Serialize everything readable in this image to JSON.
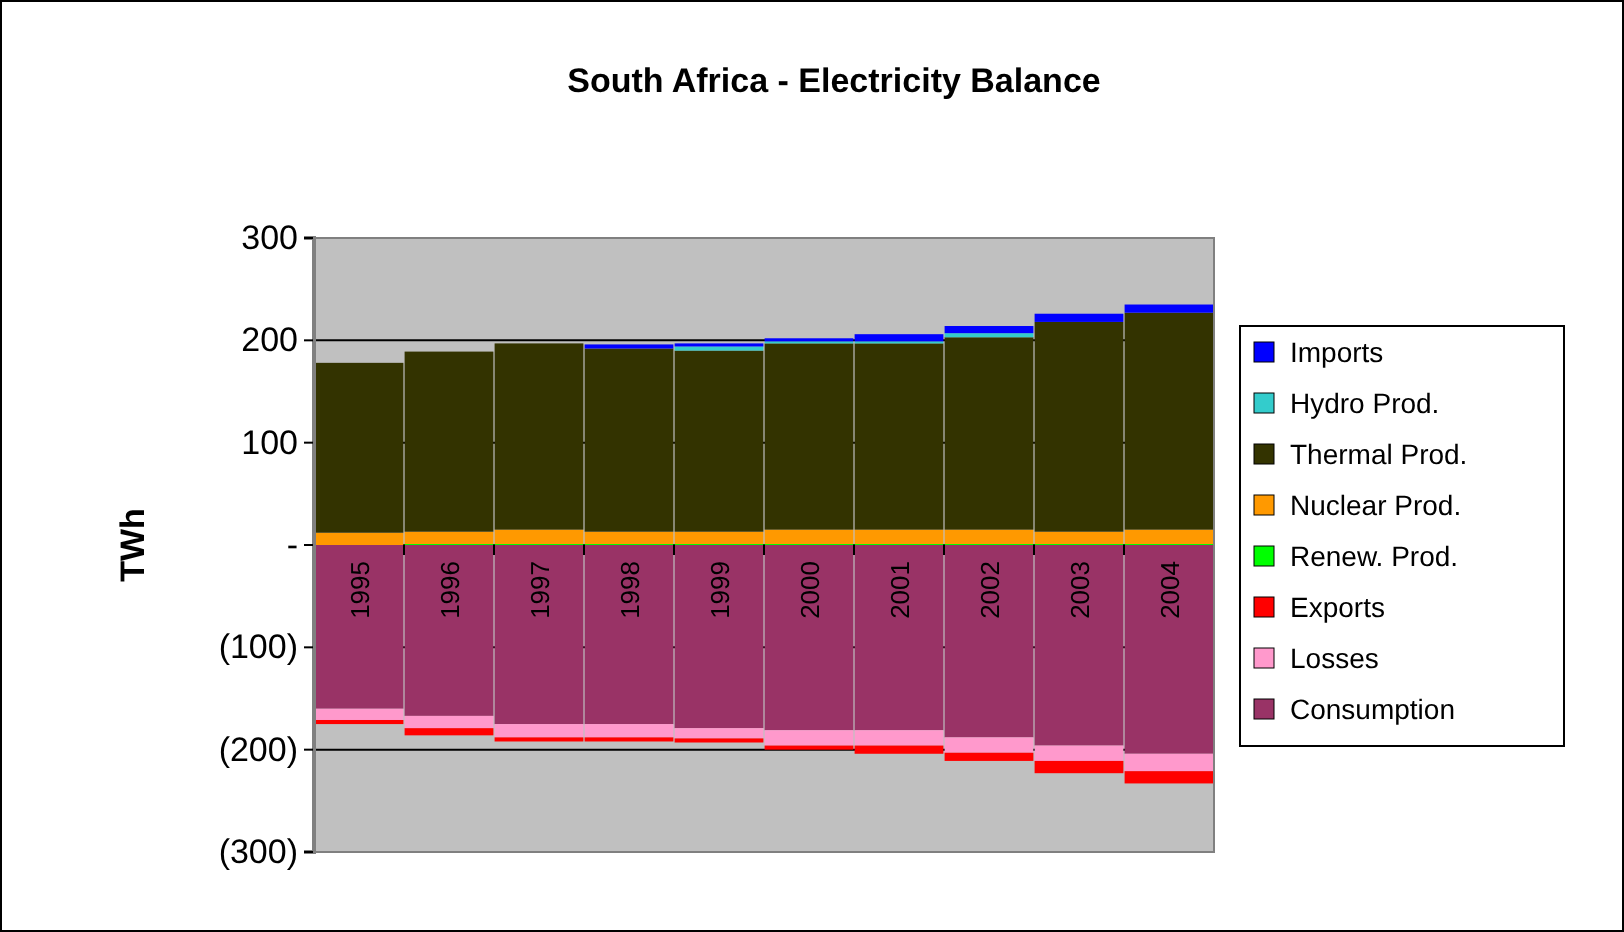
{
  "chart_data": {
    "type": "bar",
    "title": "South Africa - Electricity Balance",
    "ylabel": "TWh",
    "stacked": true,
    "grid": "y",
    "legend": "right",
    "categories": [
      "1995",
      "1996",
      "1997",
      "1998",
      "1999",
      "2000",
      "2001",
      "2002",
      "2003",
      "2004"
    ],
    "ylim": [
      -300,
      300
    ],
    "yticks": [
      {
        "value": -300,
        "label": "(300)"
      },
      {
        "value": -200,
        "label": "(200)"
      },
      {
        "value": -100,
        "label": "(100)"
      },
      {
        "value": 0,
        "label": "-"
      },
      100,
      200,
      300
    ],
    "series": [
      {
        "name": "Consumption",
        "color": "#993366",
        "values": [
          -160,
          -167,
          -175,
          -175,
          -179,
          -181,
          -181,
          -188,
          -196,
          -204
        ]
      },
      {
        "name": "Losses",
        "color": "#ff99cc",
        "values": [
          -11,
          -12,
          -13,
          -13,
          -10,
          -15,
          -15,
          -15,
          -15,
          -17
        ]
      },
      {
        "name": "Exports",
        "color": "#ff0000",
        "values": [
          -4,
          -7,
          -4,
          -4,
          -4,
          -4,
          -8,
          -8,
          -12,
          -12
        ]
      },
      {
        "name": "Renew. Prod.",
        "color": "#00ff00",
        "values": [
          0,
          1,
          1,
          1,
          1,
          1,
          1,
          1,
          1,
          1
        ]
      },
      {
        "name": "Nuclear Prod.",
        "color": "#ff9900",
        "values": [
          12,
          12,
          14,
          12,
          12,
          14,
          14,
          14,
          12,
          14
        ]
      },
      {
        "name": "Thermal Prod.",
        "color": "#333300",
        "values": [
          166,
          176,
          182,
          179,
          177,
          182,
          182,
          188,
          205,
          212
        ]
      },
      {
        "name": "Hydro Prod.",
        "color": "#33cccc",
        "values": [
          0,
          0,
          0,
          0,
          4,
          2,
          2,
          4,
          0,
          0
        ]
      },
      {
        "name": "Imports",
        "color": "#0000ff",
        "values": [
          0,
          0,
          0,
          4,
          3,
          3,
          7,
          7,
          8,
          8
        ]
      }
    ]
  }
}
